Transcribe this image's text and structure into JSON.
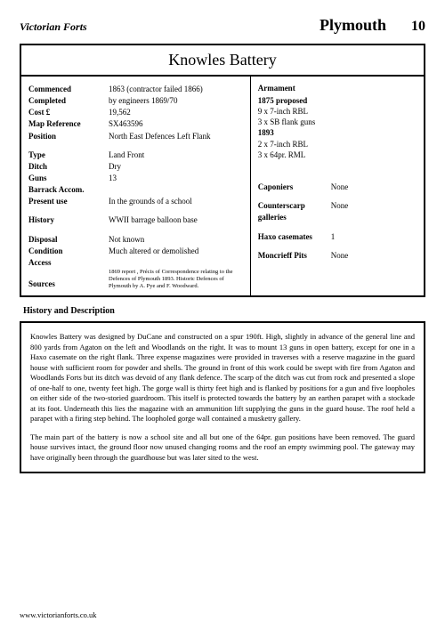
{
  "header": {
    "brand": "Victorian Forts",
    "region": "Plymouth",
    "page": "10"
  },
  "title": "Knowles Battery",
  "left": {
    "commenced": {
      "label": "Commenced",
      "value": "1863 (contractor failed 1866)"
    },
    "completed": {
      "label": "Completed",
      "value": "by engineers 1869/70"
    },
    "cost": {
      "label": "Cost            £",
      "value": "19,562"
    },
    "mapref": {
      "label": "Map Reference",
      "value": "SX463596"
    },
    "position": {
      "label": "Position",
      "value": "North East Defences Left Flank"
    },
    "type": {
      "label": "Type",
      "value": "Land Front"
    },
    "ditch": {
      "label": "Ditch",
      "value": "Dry"
    },
    "guns": {
      "label": "Guns",
      "value": "13"
    },
    "barrack": {
      "label": "Barrack Accom.",
      "value": ""
    },
    "present": {
      "label": "Present use",
      "value": "In the grounds of a school"
    },
    "history": {
      "label": "History",
      "value": "WWII barrage balloon base"
    },
    "disposal": {
      "label": "Disposal",
      "value": "Not known"
    },
    "condition": {
      "label": "Condition",
      "value": "Much altered or demolished"
    },
    "access": {
      "label": "Access",
      "value": ""
    },
    "sources": {
      "label": "Sources",
      "value": "1869 report , Précis of Correspondence relating to the Defences of Plymouth 1893.  Historic Defences of Plymouth by A. Pye and F. Woodward."
    }
  },
  "right": {
    "armament_label": "Armament",
    "lines": [
      "1875 proposed",
      "9 x 7-inch RBL",
      "3 x SB flank guns",
      "1893",
      "2 x 7-inch RBL",
      "3 x 64pr. RML"
    ],
    "bold_idx": [
      0,
      3
    ],
    "features": {
      "caponiers": {
        "label": "Caponiers",
        "value": "None"
      },
      "counterscarp": {
        "label": "Counterscarp galleries",
        "value": "None"
      },
      "haxo": {
        "label": "Haxo casemates",
        "value": "1"
      },
      "moncrieff": {
        "label": "Moncrieff Pits",
        "value": "None"
      }
    }
  },
  "section_head": "History and Description",
  "description": {
    "p1": "Knowles Battery was designed by DuCane and constructed on a spur 190ft. High, slightly in advance of the general line and 800 yards from Agaton on the left and Woodlands on the right. It was to mount 13 guns in open battery, except for one in a Haxo casemate on the right flank. Three expense magazines were provided in traverses with a reserve magazine in the guard house with sufficient room for powder and shells. The ground in front of this work could be swept with fire from Agaton and Woodlands Forts but its ditch was devoid of any flank defence. The scarp of the ditch was cut from rock and presented a slope of one-half to one, twenty feet high. The gorge wall is thirty feet high and is flanked by positions for a gun and five loopholes on either side of the two-storied guardroom. This itself is protected towards the battery by an earthen parapet with a stockade at its foot. Underneath this lies the magazine with an ammunition lift supplying the guns in the guard house. The roof held a parapet with a firing step behind. The loopholed gorge wall contained a musketry gallery.",
    "p2": "The main part of the battery is now a school site and all but one of the 64pr. gun positions have been removed. The guard house survives intact, the ground floor now unused changing rooms and the roof an empty swimming pool.  The gateway may have originally been through the guardhouse but  was later sited to the west."
  },
  "footer": "www.victorianforts.co.uk"
}
